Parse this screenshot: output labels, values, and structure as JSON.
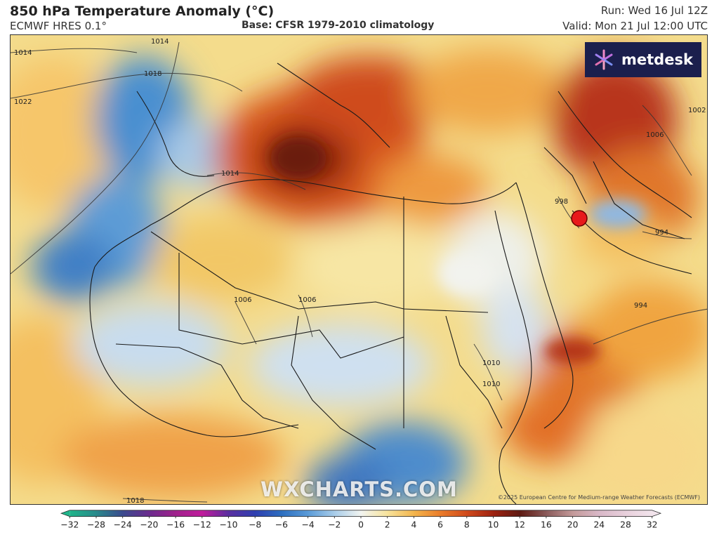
{
  "header": {
    "title": "850 hPa Temperature Anomaly (°C)",
    "model": "ECMWF HRES 0.1°",
    "base": "Base: CFSR 1979-2010 climatology",
    "run": "Run: Wed 16 Jul 12Z",
    "valid": "Valid: Mon 21 Jul 12:00 UTC"
  },
  "branding": {
    "logo_text": "metdesk",
    "watermark": "WXCHARTS.COM",
    "copyright": "©2025 European Centre for Medium-range Weather Forecasts (ECMWF)"
  },
  "isobars": {
    "labels": [
      "1014",
      "1014",
      "1018",
      "1022",
      "1014",
      "1006",
      "1006",
      "1010",
      "1010",
      "998",
      "994",
      "994",
      "1006",
      "1002",
      "1018"
    ]
  },
  "marker": {
    "color": "#e8191b"
  },
  "colorbar": {
    "ticks": [
      "-32",
      "-28",
      "-24",
      "-20",
      "-16",
      "-12",
      "-10",
      "-8",
      "-6",
      "-4",
      "-2",
      "0",
      "2",
      "4",
      "6",
      "8",
      "10",
      "12",
      "16",
      "20",
      "24",
      "28",
      "32"
    ],
    "colors": [
      "#1fb58a",
      "#2a8a8c",
      "#3b4a8e",
      "#6b2c8e",
      "#a0228c",
      "#c01c9c",
      "#5a2fa0",
      "#2f3fb0",
      "#2d6fc0",
      "#5a9bd8",
      "#a9cde9",
      "#f2f4f0",
      "#f7e39c",
      "#f3b54c",
      "#ea7c2a",
      "#d04a1c",
      "#9e2210",
      "#5e1a12",
      "#8a5a5a",
      "#c49a9a",
      "#d9b8c8",
      "#e8d0dc",
      "#f2e4ec"
    ]
  }
}
